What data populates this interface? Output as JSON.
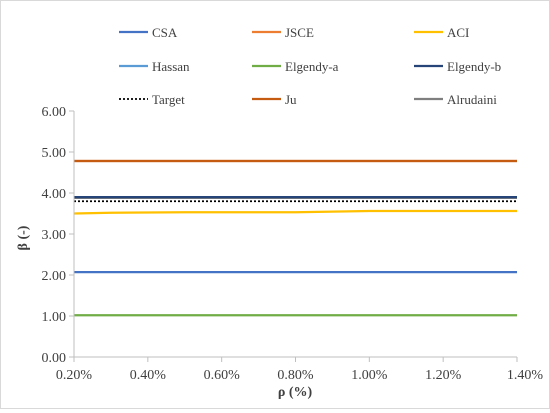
{
  "chart_data": {
    "type": "line",
    "xlabel": "ρ (%)",
    "ylabel": "β (-)",
    "xlim": [
      0.2,
      1.4
    ],
    "ylim": [
      0,
      6
    ],
    "x_ticks": [
      "0.20%",
      "0.40%",
      "0.60%",
      "0.80%",
      "1.00%",
      "1.20%",
      "1.40%"
    ],
    "y_ticks": [
      "0.00",
      "1.00",
      "2.00",
      "3.00",
      "4.00",
      "5.00",
      "6.00"
    ],
    "grid": "none",
    "legend_position": "top",
    "series": [
      {
        "name": "CSA",
        "color": "#4472c4",
        "style": "solid",
        "x": [
          0.2,
          1.4
        ],
        "y": [
          2.07,
          2.07
        ]
      },
      {
        "name": "JSCE",
        "color": "#ed7d31",
        "style": "solid",
        "x": [
          0.2,
          1.4
        ],
        "y": [
          4.78,
          4.78
        ]
      },
      {
        "name": "ACI",
        "color": "#ffc000",
        "style": "solid",
        "x": [
          0.2,
          0.3,
          0.5,
          0.8,
          1.0,
          1.2,
          1.4
        ],
        "y": [
          3.5,
          3.52,
          3.53,
          3.53,
          3.56,
          3.56,
          3.56
        ]
      },
      {
        "name": "Hassan",
        "color": "#5b9bd5",
        "style": "solid",
        "x": [
          0.2,
          1.4
        ],
        "y": [
          3.88,
          3.88
        ]
      },
      {
        "name": "Elgendy-a",
        "color": "#70ad47",
        "style": "solid",
        "x": [
          0.2,
          1.4
        ],
        "y": [
          1.02,
          1.02
        ]
      },
      {
        "name": "Elgendy-b",
        "color": "#264478",
        "style": "solid",
        "x": [
          0.2,
          1.4
        ],
        "y": [
          3.9,
          3.9
        ]
      },
      {
        "name": "Target",
        "color": "#000000",
        "style": "dotted",
        "x": [
          0.2,
          1.4
        ],
        "y": [
          3.8,
          3.8
        ]
      },
      {
        "name": "Ju",
        "color": "#c55a11",
        "style": "solid",
        "x": [
          0.2,
          1.4
        ],
        "y": [
          4.78,
          4.78
        ]
      },
      {
        "name": "Alrudaini",
        "color": "#7f7f7f",
        "style": "solid",
        "x": [
          0.2,
          1.4
        ],
        "y": [
          3.88,
          3.88
        ]
      }
    ]
  }
}
